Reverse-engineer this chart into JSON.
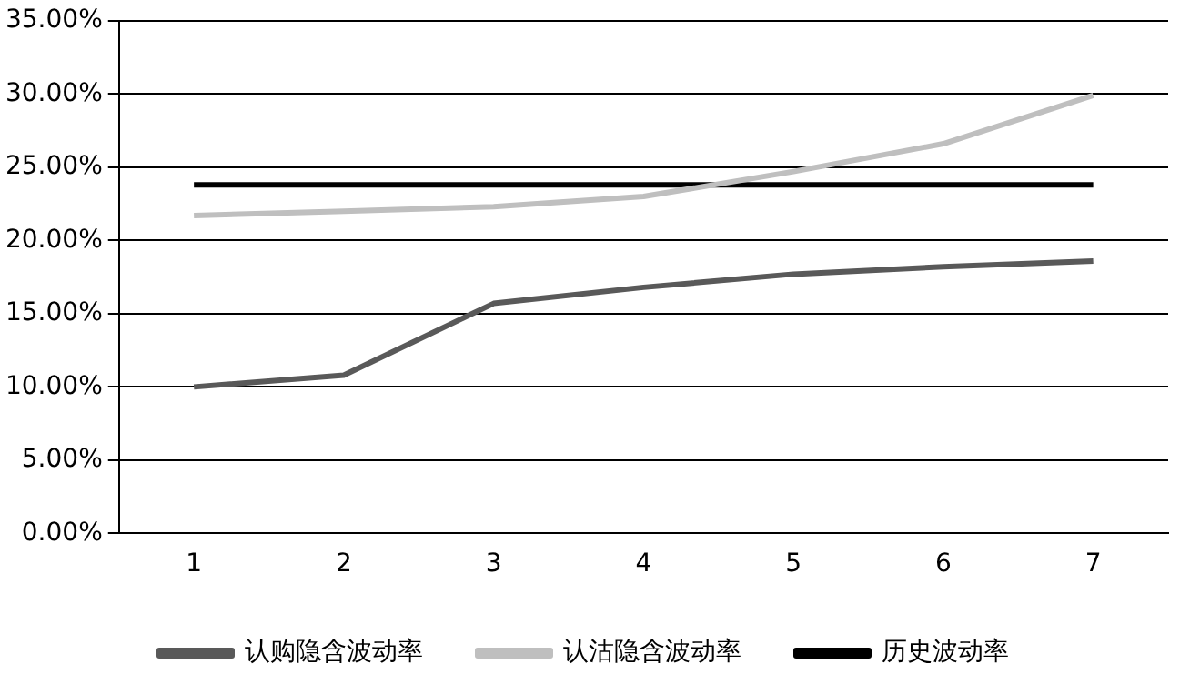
{
  "chart_data": {
    "type": "line",
    "categories": [
      "1",
      "2",
      "3",
      "4",
      "5",
      "6",
      "7"
    ],
    "series": [
      {
        "name": "认购隐含波动率",
        "color": "#595959",
        "values": [
          10.0,
          10.8,
          15.7,
          16.8,
          17.7,
          18.2,
          18.6
        ]
      },
      {
        "name": "认沽隐含波动率",
        "color": "#bfbfbf",
        "values": [
          21.7,
          22.0,
          22.3,
          23.0,
          24.7,
          26.6,
          29.9
        ]
      },
      {
        "name": "历史波动率",
        "color": "#000000",
        "values": [
          23.8,
          23.8,
          23.8,
          23.8,
          23.8,
          23.8,
          23.8
        ]
      }
    ],
    "ylim": [
      0,
      35
    ],
    "yticks": [
      {
        "value": 0,
        "label": "0.00%"
      },
      {
        "value": 5,
        "label": "5.00%"
      },
      {
        "value": 10,
        "label": "10.00%"
      },
      {
        "value": 15,
        "label": "15.00%"
      },
      {
        "value": 20,
        "label": "20.00%"
      },
      {
        "value": 25,
        "label": "25.00%"
      },
      {
        "value": 30,
        "label": "30.00%"
      },
      {
        "value": 35,
        "label": "35.00%"
      }
    ],
    "grid": "y",
    "legend": "bottom",
    "marker": "none",
    "line_style": "solid"
  }
}
